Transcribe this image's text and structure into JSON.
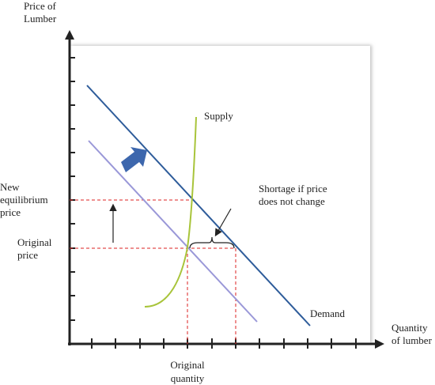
{
  "labels": {
    "y_axis": [
      "Price of",
      "Lumber"
    ],
    "x_axis": [
      "Quantity",
      "of lumber"
    ],
    "supply": "Supply",
    "demand": "Demand",
    "shortage": [
      "Shortage if price",
      "does not change"
    ],
    "new_price": [
      "New",
      "equilibrium",
      "price"
    ],
    "original_price": [
      "Original",
      "price"
    ],
    "original_quantity": [
      "Original",
      "quantity"
    ]
  }
}
